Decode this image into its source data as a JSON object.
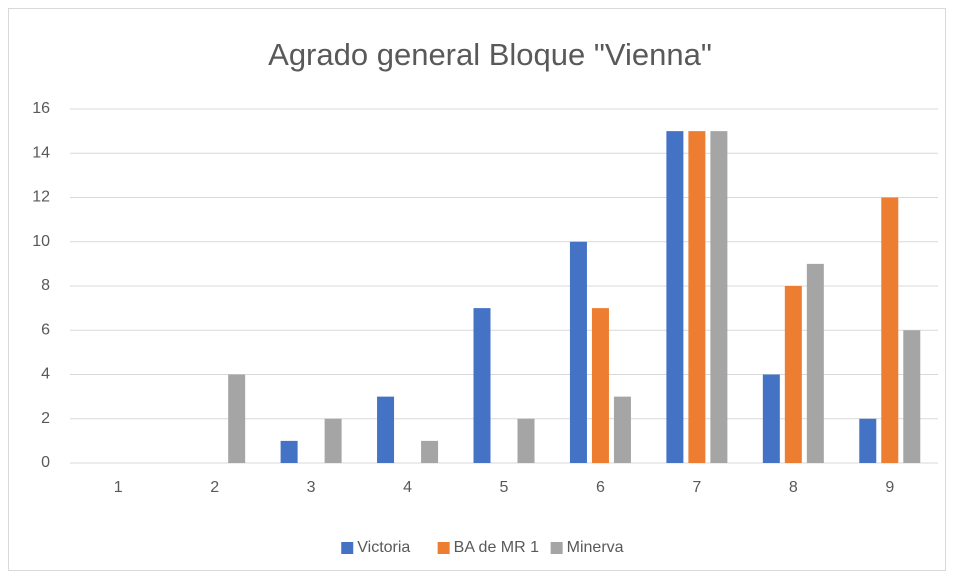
{
  "chart_data": {
    "type": "bar",
    "title": "Agrado general Bloque \"Vienna\"",
    "categories": [
      "1",
      "2",
      "3",
      "4",
      "5",
      "6",
      "7",
      "8",
      "9"
    ],
    "series": [
      {
        "name": "Victoria",
        "color": "#4472c4",
        "values": [
          0,
          0,
          1,
          3,
          7,
          10,
          15,
          4,
          2
        ]
      },
      {
        "name": "BA de MR 1",
        "color": "#ed7d31",
        "values": [
          0,
          0,
          0,
          0,
          0,
          7,
          15,
          8,
          12
        ]
      },
      {
        "name": "Minerva",
        "color": "#a5a5a5",
        "values": [
          0,
          4,
          2,
          1,
          2,
          3,
          15,
          9,
          6
        ]
      }
    ],
    "ylim": [
      0,
      16
    ],
    "yticks": [
      0,
      2,
      4,
      6,
      8,
      10,
      12,
      14,
      16
    ],
    "grid": true,
    "legend": "bottom"
  }
}
